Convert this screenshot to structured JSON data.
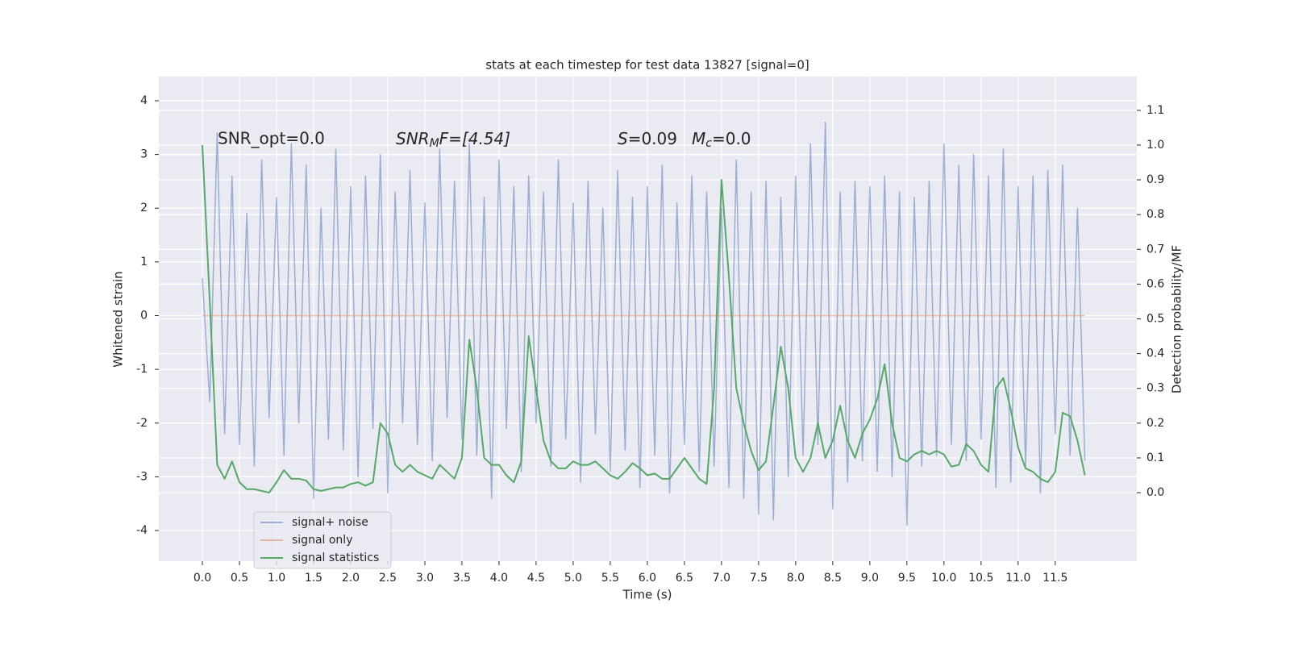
{
  "chart_data": {
    "type": "line",
    "title": "stats at each timestep for test data 13827 [signal=0]",
    "xlabel": "Time (s)",
    "ylabel": "Whitened strain",
    "y2label": "Detection probability/MF",
    "annotations": [
      {
        "text": "SNR_opt=0.0"
      },
      {
        "main": "SNR",
        "sub": "M",
        "rest": "F=[4.54]"
      },
      {
        "main": "S",
        "rest": "=0.09"
      },
      {
        "main": "M",
        "sub": "c",
        "rest": "=0.0"
      }
    ],
    "x": [
      0,
      0.1,
      0.2,
      0.3,
      0.4,
      0.5,
      0.6,
      0.7,
      0.8,
      0.9,
      1,
      1.1,
      1.2,
      1.3,
      1.4,
      1.5,
      1.6,
      1.7,
      1.8,
      1.9,
      2,
      2.1,
      2.2,
      2.3,
      2.4,
      2.5,
      2.6,
      2.7,
      2.8,
      2.9,
      3,
      3.1,
      3.2,
      3.3,
      3.4,
      3.5,
      3.6,
      3.7,
      3.8,
      3.9,
      4,
      4.1,
      4.2,
      4.3,
      4.4,
      4.5,
      4.6,
      4.7,
      4.8,
      4.9,
      5,
      5.1,
      5.2,
      5.3,
      5.4,
      5.5,
      5.6,
      5.7,
      5.8,
      5.9,
      6,
      6.1,
      6.2,
      6.3,
      6.4,
      6.5,
      6.6,
      6.7,
      6.8,
      6.9,
      7,
      7.1,
      7.2,
      7.3,
      7.4,
      7.5,
      7.6,
      7.7,
      7.8,
      7.9,
      8,
      8.1,
      8.2,
      8.3,
      8.4,
      8.5,
      8.6,
      8.7,
      8.8,
      8.9,
      9,
      9.1,
      9.2,
      9.3,
      9.4,
      9.5,
      9.6,
      9.7,
      9.8,
      9.9,
      10,
      10.1,
      10.2,
      10.3,
      10.4,
      10.5,
      10.6,
      10.7,
      10.8,
      10.9,
      11,
      11.1,
      11.2,
      11.3,
      11.4,
      11.5,
      11.6,
      11.7,
      11.8,
      11.9
    ],
    "series": [
      {
        "name": "signal+ noise",
        "color": "#4c72b0",
        "opacity": 0.5,
        "axis": "y",
        "values": [
          0.7,
          -1.6,
          3.4,
          -2.2,
          2.6,
          -2.4,
          1.9,
          -2.8,
          2.9,
          -1.9,
          2.2,
          -2.6,
          3.2,
          -2.0,
          2.8,
          -3.4,
          2.0,
          -2.3,
          3.1,
          -2.5,
          2.4,
          -3.0,
          2.6,
          -2.1,
          3.0,
          -3.3,
          2.3,
          -2.0,
          2.7,
          -2.4,
          2.1,
          -2.7,
          3.1,
          -1.9,
          2.5,
          -2.3,
          3.2,
          -2.6,
          2.2,
          -3.4,
          2.9,
          -2.1,
          2.4,
          -2.9,
          2.6,
          -2.0,
          2.3,
          -2.8,
          2.9,
          -2.3,
          2.1,
          -3.1,
          2.5,
          -2.2,
          2.0,
          -2.9,
          2.7,
          -2.5,
          2.2,
          -3.2,
          2.4,
          -2.6,
          2.8,
          -3.3,
          2.1,
          -2.4,
          2.6,
          -2.9,
          2.3,
          -2.8,
          2.0,
          -3.2,
          2.9,
          -3.4,
          2.3,
          -3.7,
          2.5,
          -3.8,
          2.2,
          -3.0,
          2.6,
          -2.6,
          3.2,
          -2.4,
          3.6,
          -3.6,
          2.3,
          -3.1,
          2.5,
          -2.7,
          2.4,
          -2.9,
          2.6,
          -3.0,
          2.3,
          -3.9,
          2.2,
          -2.8,
          2.5,
          -2.6,
          3.2,
          -2.4,
          2.8,
          -2.7,
          3.0,
          -2.3,
          2.6,
          -3.2,
          3.1,
          -3.1,
          2.4,
          -2.8,
          2.6,
          -3.3,
          2.7,
          -2.2,
          2.8,
          -2.6,
          2.0,
          -2.7
        ]
      },
      {
        "name": "signal only",
        "color": "#dd8452",
        "opacity": 0.5,
        "axis": "y",
        "values": [
          0,
          0,
          0,
          0,
          0,
          0,
          0,
          0,
          0,
          0,
          0,
          0,
          0,
          0,
          0,
          0,
          0,
          0,
          0,
          0,
          0,
          0,
          0,
          0,
          0,
          0,
          0,
          0,
          0,
          0,
          0,
          0,
          0,
          0,
          0,
          0,
          0,
          0,
          0,
          0,
          0,
          0,
          0,
          0,
          0,
          0,
          0,
          0,
          0,
          0,
          0,
          0,
          0,
          0,
          0,
          0,
          0,
          0,
          0,
          0,
          0,
          0,
          0,
          0,
          0,
          0,
          0,
          0,
          0,
          0,
          0,
          0,
          0,
          0,
          0,
          0,
          0,
          0,
          0,
          0,
          0,
          0,
          0,
          0,
          0,
          0,
          0,
          0,
          0,
          0,
          0,
          0,
          0,
          0,
          0,
          0,
          0,
          0,
          0,
          0,
          0,
          0,
          0,
          0,
          0,
          0,
          0,
          0,
          0,
          0,
          0,
          0,
          0,
          0,
          0,
          0,
          0,
          0,
          0,
          0
        ]
      },
      {
        "name": "signal statistics",
        "color": "#55a868",
        "opacity": 1,
        "axis": "y2",
        "values": [
          1.0,
          0.55,
          0.08,
          0.04,
          0.09,
          0.03,
          0.01,
          0.01,
          0.005,
          0.0,
          0.03,
          0.065,
          0.04,
          0.04,
          0.035,
          0.01,
          0.005,
          0.01,
          0.015,
          0.015,
          0.025,
          0.03,
          0.02,
          0.03,
          0.2,
          0.17,
          0.08,
          0.06,
          0.08,
          0.06,
          0.05,
          0.04,
          0.08,
          0.06,
          0.04,
          0.1,
          0.44,
          0.3,
          0.1,
          0.08,
          0.08,
          0.05,
          0.03,
          0.09,
          0.45,
          0.3,
          0.15,
          0.09,
          0.07,
          0.07,
          0.09,
          0.08,
          0.08,
          0.09,
          0.07,
          0.05,
          0.04,
          0.06,
          0.085,
          0.07,
          0.05,
          0.055,
          0.04,
          0.04,
          0.07,
          0.1,
          0.07,
          0.04,
          0.025,
          0.3,
          0.9,
          0.62,
          0.3,
          0.2,
          0.12,
          0.065,
          0.09,
          0.25,
          0.42,
          0.3,
          0.1,
          0.06,
          0.1,
          0.2,
          0.1,
          0.15,
          0.25,
          0.15,
          0.1,
          0.17,
          0.21,
          0.27,
          0.37,
          0.2,
          0.1,
          0.09,
          0.11,
          0.12,
          0.11,
          0.12,
          0.11,
          0.075,
          0.08,
          0.14,
          0.12,
          0.08,
          0.06,
          0.3,
          0.33,
          0.24,
          0.13,
          0.07,
          0.06,
          0.04,
          0.03,
          0.06,
          0.23,
          0.22,
          0.15,
          0.05
        ]
      }
    ],
    "xlim": [
      -0.587,
      12.6
    ],
    "ylim": [
      -4.57,
      4.45
    ],
    "y2lim": [
      -0.197,
      1.197
    ],
    "xticks": [
      {
        "value": 0,
        "label": "0.0"
      },
      0.5,
      {
        "value": 1,
        "label": "1.0"
      },
      1.5,
      {
        "value": 2,
        "label": "2.0"
      },
      2.5,
      {
        "value": 3,
        "label": "3.0"
      },
      3.5,
      {
        "value": 4,
        "label": "4.0"
      },
      4.5,
      {
        "value": 5,
        "label": "5.0"
      },
      5.5,
      {
        "value": 6,
        "label": "6.0"
      },
      6.5,
      {
        "value": 7,
        "label": "7.0"
      },
      7.5,
      {
        "value": 8,
        "label": "8.0"
      },
      8.5,
      {
        "value": 9,
        "label": "9.0"
      },
      9.5,
      {
        "value": 10,
        "label": "10.0"
      },
      10.5,
      {
        "value": 11,
        "label": "11.0"
      },
      11.5
    ],
    "yticks": [
      -4,
      -3,
      -2,
      -1,
      0,
      1,
      2,
      3,
      4
    ],
    "y2ticks": [
      {
        "value": 0,
        "label": "0.0"
      },
      0.1,
      0.2,
      0.3,
      0.4,
      0.5,
      0.6,
      0.7,
      0.8,
      0.9,
      {
        "value": 1,
        "label": "1.0"
      },
      1.1
    ],
    "grid": true,
    "legend": "lower left"
  }
}
